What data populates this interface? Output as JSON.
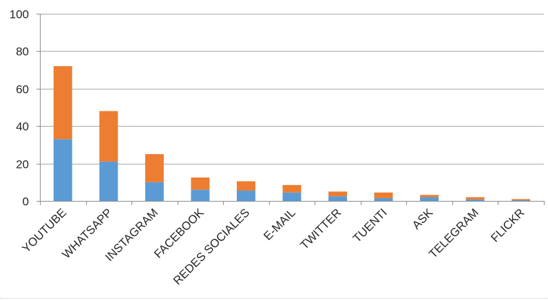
{
  "chart_data": {
    "type": "bar",
    "stacked": true,
    "categories": [
      "YOUTUBE",
      "WHATSAPP",
      "INSTAGRAM",
      "FACEBOOK",
      "REDES SOCIALES",
      "E-MAIL",
      "TWITTER",
      "TUENTI",
      "ASK",
      "TELEGRAM",
      "FLICKR"
    ],
    "series": [
      {
        "color": "#5b9bd5",
        "values": [
          33,
          21,
          10,
          6,
          5.5,
          4.5,
          2.5,
          1.5,
          2,
          0.8,
          0.4
        ]
      },
      {
        "color": "#ed7d31",
        "values": [
          39,
          27,
          15,
          6.5,
          5,
          4,
          2.5,
          3,
          1.2,
          1.2,
          0.6
        ]
      }
    ],
    "title": "",
    "xlabel": "",
    "ylabel": "",
    "ylim": [
      0,
      100
    ],
    "yticks": [
      "0",
      "20",
      "40",
      "60",
      "80",
      "100"
    ],
    "grid": true,
    "legend": "none"
  }
}
